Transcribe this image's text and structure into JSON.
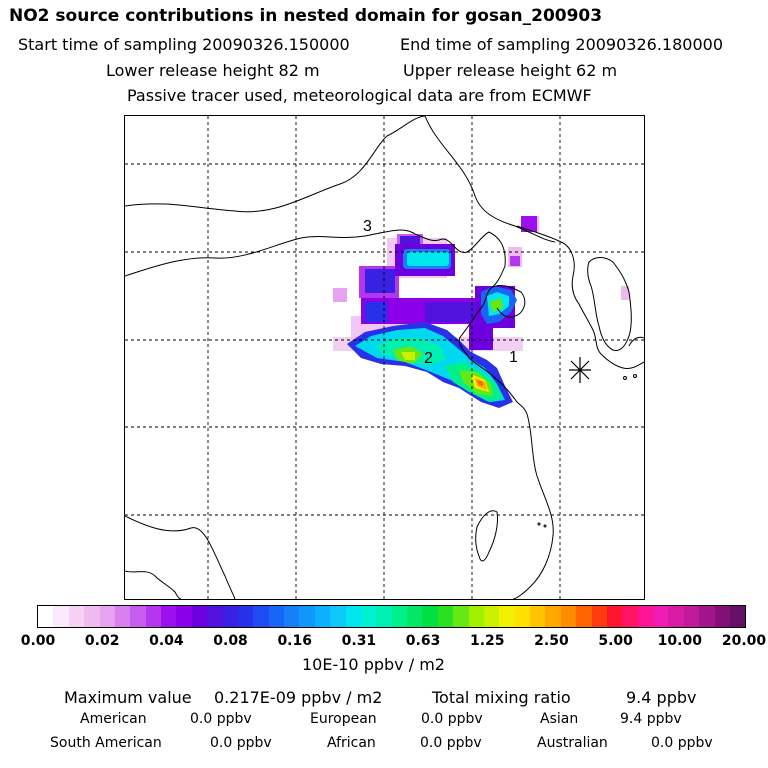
{
  "header": {
    "title": "NO2 source contributions in nested domain for gosan_200903",
    "start_time": "Start time of sampling 20090326.150000",
    "end_time": "End time of sampling 20090326.180000",
    "lower_release": "Lower release height   82 m",
    "upper_release": "Upper release height   62 m",
    "note": "Passive tracer used, meteorological data are from ECMWF"
  },
  "map": {
    "labels": {
      "l1": "1",
      "l2": "2",
      "l3": "3"
    },
    "receptor_symbol": "station-star-icon"
  },
  "colorbar": {
    "ticks": [
      "0.00",
      "0.02",
      "0.04",
      "0.08",
      "0.16",
      "0.31",
      "0.63",
      "1.25",
      "2.50",
      "5.00",
      "10.00",
      "20.00"
    ],
    "colors": [
      "#ffffff",
      "#fbe9fb",
      "#f5d2f5",
      "#efbbef",
      "#e7a4ee",
      "#d880ee",
      "#c85cee",
      "#b437ee",
      "#9d10ee",
      "#8b00e8",
      "#6e00e0",
      "#5012dc",
      "#3a20e0",
      "#2830e8",
      "#1f4cf0",
      "#1a66f4",
      "#1680f8",
      "#0f98fa",
      "#0db0fb",
      "#10c8f8",
      "#00e6ee",
      "#00f0d4",
      "#00f0b4",
      "#00f08c",
      "#00e866",
      "#00e040",
      "#2ae020",
      "#66e814",
      "#a0f000",
      "#c8f000",
      "#f0f000",
      "#ffe000",
      "#ffc400",
      "#ffa800",
      "#ff8c00",
      "#ff6400",
      "#ff3c10",
      "#ff1430",
      "#ff1464",
      "#ff1496",
      "#f01ab4",
      "#d81aa4",
      "#c01a9a",
      "#a0148c",
      "#821078",
      "#641064"
    ],
    "units": "10E-10 ppbv / m2"
  },
  "stats": {
    "max_label": "Maximum value",
    "max_value": "0.217E-09 ppbv / m2",
    "total_label": "Total mixing ratio",
    "total_value": "9.4 ppbv",
    "regions": [
      {
        "name": "American",
        "value": "0.0 ppbv"
      },
      {
        "name": "European",
        "value": "0.0 ppbv"
      },
      {
        "name": "Asian",
        "value": "9.4 ppbv"
      },
      {
        "name": "South American",
        "value": "0.0 ppbv"
      },
      {
        "name": "African",
        "value": "0.0 ppbv"
      },
      {
        "name": "Australian",
        "value": "0.0 ppbv"
      }
    ]
  }
}
